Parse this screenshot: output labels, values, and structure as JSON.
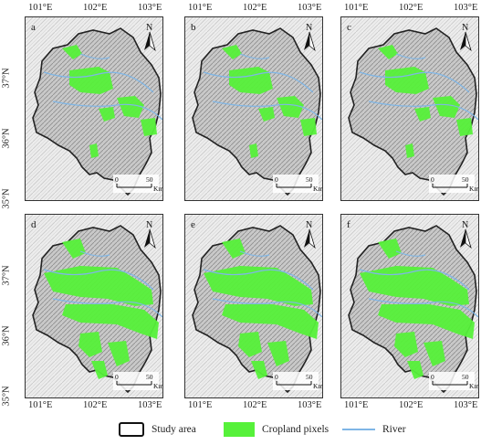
{
  "map": {
    "lon_labels": [
      "101°E",
      "102°E",
      "103°E"
    ],
    "lat_labels": [
      "37°N",
      "36°N",
      "35°N"
    ],
    "north_label": "N",
    "scale": {
      "zero": "0",
      "fifty": "50",
      "unit": "Km"
    }
  },
  "panels": [
    {
      "letter": "a",
      "cropland_extent": "low"
    },
    {
      "letter": "b",
      "cropland_extent": "low"
    },
    {
      "letter": "c",
      "cropland_extent": "low"
    },
    {
      "letter": "d",
      "cropland_extent": "high"
    },
    {
      "letter": "e",
      "cropland_extent": "high"
    },
    {
      "letter": "f",
      "cropland_extent": "high"
    }
  ],
  "legend": {
    "study_area": "Study area",
    "cropland": "Cropland pixels",
    "river": "River"
  },
  "colors": {
    "cropland": "#56f13a",
    "river": "#7fb6e6",
    "boundary": "#222222",
    "hillshade": "#bdbdbd"
  }
}
